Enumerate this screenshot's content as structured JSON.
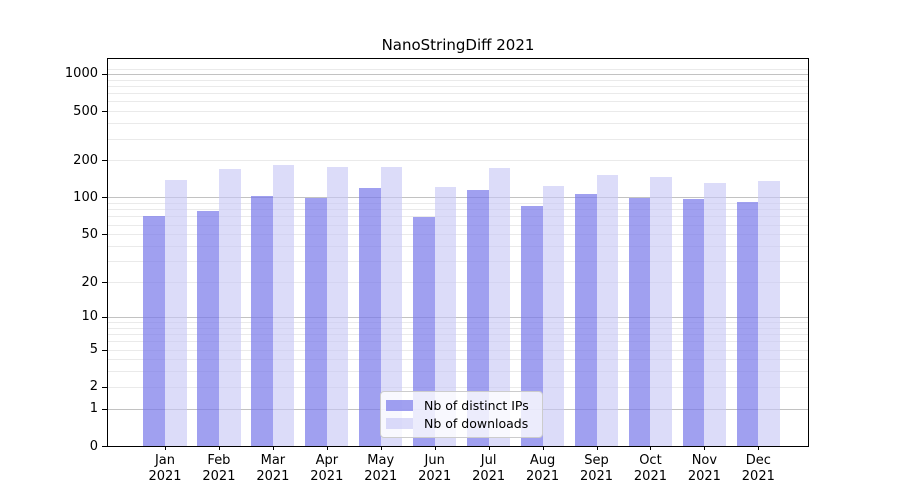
{
  "chart_data": {
    "type": "bar",
    "title": "NanoStringDiff 2021",
    "categories": [
      "Jan 2021",
      "Feb 2021",
      "Mar 2021",
      "Apr 2021",
      "May 2021",
      "Jun 2021",
      "Jul 2021",
      "Aug 2021",
      "Sep 2021",
      "Oct 2021",
      "Nov 2021",
      "Dec 2021"
    ],
    "series": [
      {
        "name": "Nb of distinct IPs",
        "values": [
          71,
          77,
          103,
          99,
          120,
          69,
          114,
          85,
          106,
          99,
          97,
          91
        ]
      },
      {
        "name": "Nb of downloads",
        "values": [
          140,
          170,
          183,
          178,
          176,
          122,
          174,
          124,
          153,
          148,
          132,
          136
        ]
      }
    ],
    "xlabel": "",
    "ylabel": "",
    "y_axis": {
      "scale": "log10(value+1)",
      "ticks": [
        0,
        1,
        2,
        5,
        10,
        20,
        50,
        100,
        200,
        500,
        1000
      ],
      "major_gridlines": [
        1,
        10,
        100,
        1000
      ],
      "minor_gridlines": [
        2,
        3,
        4,
        5,
        6,
        7,
        8,
        9,
        20,
        30,
        40,
        50,
        60,
        70,
        80,
        90,
        200,
        300,
        400,
        500,
        600,
        700,
        800,
        900,
        1100
      ],
      "range_top": 1300
    },
    "grid": "on",
    "legend_position": "inside-bottom-center",
    "colors": {
      "ips_bar": "rgba(120,120,233,0.70)",
      "downloads_bar": "rgba(198,198,246,0.62)",
      "ips_bar_solid": "#a2a2f0",
      "downloads_bar_solid": "#d9d9f9",
      "major_gridline": "#c2c2c2",
      "minor_gridline": "#eaeaea",
      "axis": "#000000",
      "legend_border": "#cccccc"
    }
  }
}
